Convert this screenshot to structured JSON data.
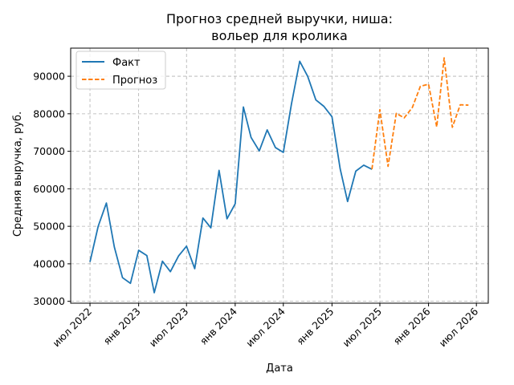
{
  "chart_data": {
    "type": "line",
    "title_lines": [
      "Прогноз средней выручки, ниша:",
      "вольер для кролика"
    ],
    "xlabel": "Дата",
    "ylabel": "Средняя выручка, руб.",
    "ylim": [
      29500,
      97500
    ],
    "xlim": [
      "2022-04-19",
      "2026-08-15"
    ],
    "y_ticks": [
      30000,
      40000,
      50000,
      60000,
      70000,
      80000,
      90000
    ],
    "x_ticks": [
      {
        "date": "2022-07-01",
        "label": "июл 2022"
      },
      {
        "date": "2023-01-01",
        "label": "янв 2023"
      },
      {
        "date": "2023-07-01",
        "label": "июл 2023"
      },
      {
        "date": "2024-01-01",
        "label": "янв 2024"
      },
      {
        "date": "2024-07-01",
        "label": "июл 2024"
      },
      {
        "date": "2025-01-01",
        "label": "янв 2025"
      },
      {
        "date": "2025-07-01",
        "label": "июл 2025"
      },
      {
        "date": "2026-01-01",
        "label": "янв 2026"
      },
      {
        "date": "2026-07-01",
        "label": "июл 2026"
      }
    ],
    "grid": true,
    "legend_position": "top-left",
    "series": [
      {
        "name": "Факт",
        "color": "#1f77b4",
        "style": "solid",
        "points": [
          [
            "2022-07-01",
            40500
          ],
          [
            "2022-08-01",
            50000
          ],
          [
            "2022-09-01",
            56200
          ],
          [
            "2022-10-01",
            44500
          ],
          [
            "2022-11-01",
            36300
          ],
          [
            "2022-12-01",
            34800
          ],
          [
            "2023-01-01",
            43600
          ],
          [
            "2023-02-01",
            42200
          ],
          [
            "2023-03-01",
            32300
          ],
          [
            "2023-04-01",
            40700
          ],
          [
            "2023-05-01",
            37900
          ],
          [
            "2023-06-01",
            42100
          ],
          [
            "2023-07-01",
            44700
          ],
          [
            "2023-08-01",
            38700
          ],
          [
            "2023-09-01",
            52200
          ],
          [
            "2023-10-01",
            49600
          ],
          [
            "2023-11-01",
            64900
          ],
          [
            "2023-12-01",
            52000
          ],
          [
            "2024-01-01",
            56000
          ],
          [
            "2024-02-01",
            81800
          ],
          [
            "2024-03-01",
            73700
          ],
          [
            "2024-04-01",
            70100
          ],
          [
            "2024-05-01",
            75700
          ],
          [
            "2024-06-01",
            71000
          ],
          [
            "2024-07-01",
            69700
          ],
          [
            "2024-08-01",
            82700
          ],
          [
            "2024-09-01",
            94000
          ],
          [
            "2024-10-01",
            90000
          ],
          [
            "2024-11-01",
            83700
          ],
          [
            "2024-12-01",
            82000
          ],
          [
            "2025-01-01",
            79200
          ],
          [
            "2025-02-01",
            65300
          ],
          [
            "2025-03-01",
            56600
          ],
          [
            "2025-04-01",
            64700
          ],
          [
            "2025-05-01",
            66300
          ],
          [
            "2025-06-01",
            65200
          ]
        ]
      },
      {
        "name": "Прогноз",
        "color": "#ff7f0e",
        "style": "dashed",
        "points": [
          [
            "2025-06-01",
            65200
          ],
          [
            "2025-07-01",
            81100
          ],
          [
            "2025-08-01",
            66000
          ],
          [
            "2025-09-01",
            80100
          ],
          [
            "2025-10-01",
            78900
          ],
          [
            "2025-11-01",
            81700
          ],
          [
            "2025-12-01",
            87300
          ],
          [
            "2026-01-01",
            87900
          ],
          [
            "2026-02-01",
            76500
          ],
          [
            "2026-03-01",
            94900
          ],
          [
            "2026-04-01",
            76400
          ],
          [
            "2026-05-01",
            82400
          ],
          [
            "2026-06-01",
            82300
          ]
        ]
      }
    ]
  }
}
